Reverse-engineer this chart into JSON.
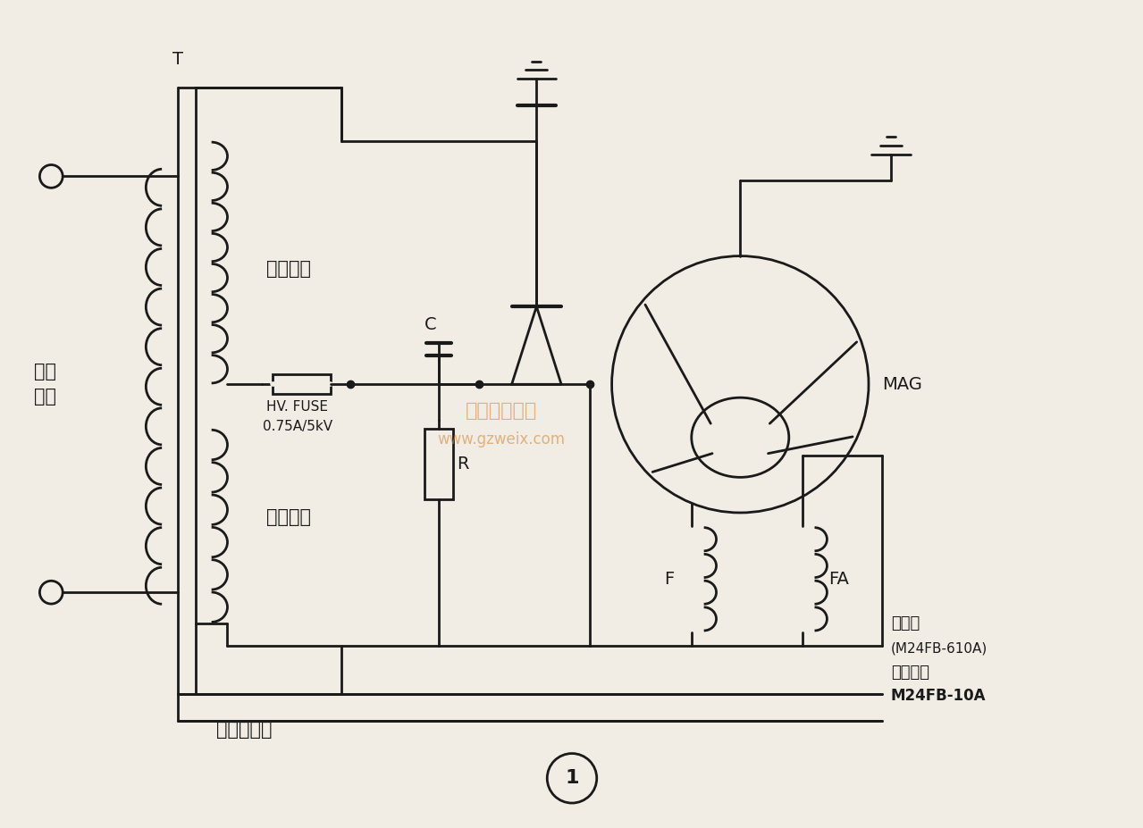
{
  "bg_color": "#f2ede4",
  "line_color": "#1a1a1a",
  "lw": 2.0,
  "watermark_text": "精通维修下载",
  "watermark_url": "www.gzweix.com",
  "watermark_color": "#d4883a",
  "label_T": "T",
  "label_primary": [
    "初级",
    "绕组"
  ],
  "label_hv": "高压绕组",
  "label_fil": "灯丝绕组",
  "label_leak": "漏感变压器",
  "label_fuse1": "HV. FUSE",
  "label_fuse2": "0.75A/5kV",
  "label_C": "C",
  "label_R": "R",
  "label_MAG": "MAG",
  "label_F": "F",
  "label_FA": "FA",
  "label_mag1": "磁控管",
  "label_mag2": "(M24FB-610A)",
  "label_mag3": "代换型号",
  "label_mag4": "M24FB-10A"
}
